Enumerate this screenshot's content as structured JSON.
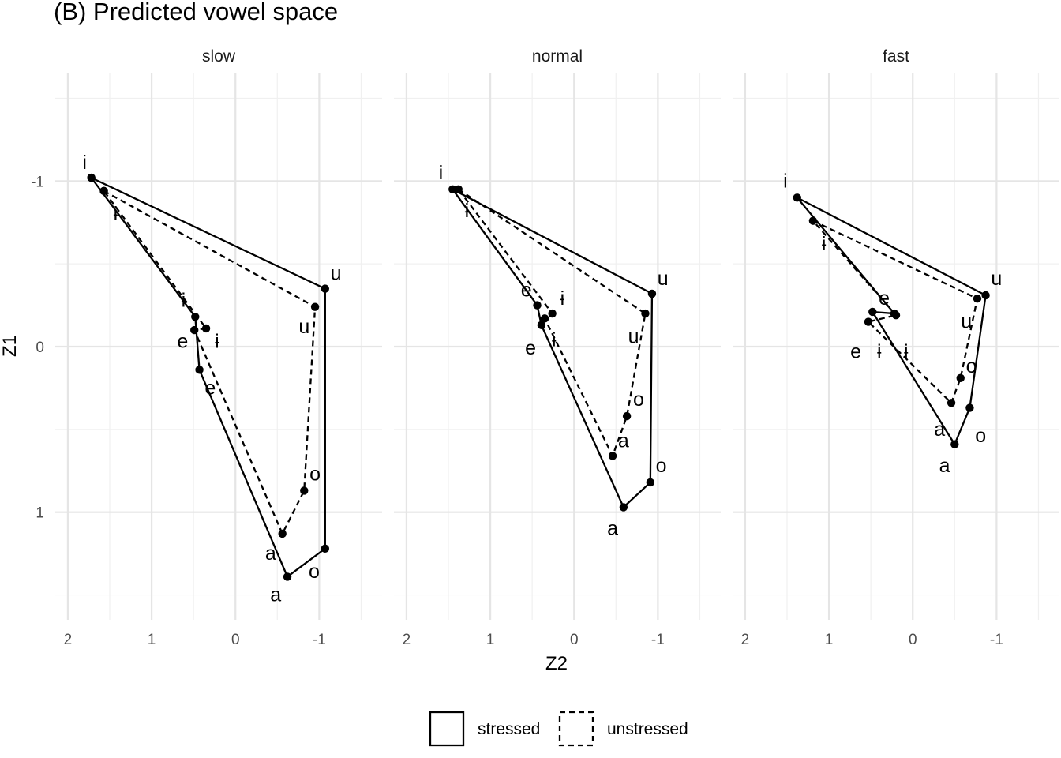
{
  "chart_data": {
    "type": "line",
    "title": "(B) Predicted vowel space",
    "xlabel": "Z2",
    "ylabel": "Z1",
    "x_reversed": true,
    "y_reversed": true,
    "xlim": [
      -1.75,
      2.15
    ],
    "ylim": [
      -1.65,
      1.65
    ],
    "x_ticks": [
      2,
      1,
      0,
      -1
    ],
    "x_tick_labels": [
      "2",
      "1",
      "0",
      "-1"
    ],
    "y_ticks": [
      -1,
      0,
      1
    ],
    "y_tick_labels": [
      "-1",
      "0",
      "1"
    ],
    "legend": {
      "position": "bottom",
      "entries": [
        {
          "label": "stressed",
          "linetype": "solid"
        },
        {
          "label": "unstressed",
          "linetype": "dashed"
        }
      ]
    },
    "panels": [
      {
        "name": "slow",
        "series": [
          {
            "name": "stressed",
            "linetype": "solid",
            "points": [
              {
                "vowel": "i",
                "x": 1.72,
                "y": -1.02
              },
              {
                "vowel": "u",
                "x": -1.07,
                "y": -0.35
              },
              {
                "vowel": "o",
                "x": -1.07,
                "y": 1.22
              },
              {
                "vowel": "a",
                "x": -0.62,
                "y": 1.39
              },
              {
                "vowel": "e",
                "x": 0.43,
                "y": 0.14
              },
              {
                "vowel": "ɨ",
                "x": 0.48,
                "y": -0.18
              }
            ],
            "extra_points": [
              {
                "x": 1.57,
                "y": -0.94
              }
            ]
          },
          {
            "name": "unstressed",
            "linetype": "dashed",
            "points": [
              {
                "vowel": "i",
                "x": 1.57,
                "y": -0.94
              },
              {
                "vowel": "u",
                "x": -0.95,
                "y": -0.24
              },
              {
                "vowel": "o",
                "x": -0.82,
                "y": 0.87
              },
              {
                "vowel": "a",
                "x": -0.56,
                "y": 1.13
              },
              {
                "vowel": "e",
                "x": 0.49,
                "y": -0.1
              },
              {
                "vowel": "ɨ",
                "x": 0.35,
                "y": -0.11
              }
            ],
            "extra_points": [
              {
                "x": 1.72,
                "y": -1.02
              }
            ]
          }
        ]
      },
      {
        "name": "normal",
        "series": [
          {
            "name": "stressed",
            "linetype": "solid",
            "points": [
              {
                "vowel": "i",
                "x": 1.45,
                "y": -0.95
              },
              {
                "vowel": "u",
                "x": -0.93,
                "y": -0.32
              },
              {
                "vowel": "o",
                "x": -0.91,
                "y": 0.82
              },
              {
                "vowel": "a",
                "x": -0.59,
                "y": 0.97
              },
              {
                "vowel": "e",
                "x": 0.39,
                "y": -0.13
              },
              {
                "vowel": "ɨ",
                "x": 0.44,
                "y": -0.25
              }
            ]
          },
          {
            "name": "unstressed",
            "linetype": "dashed",
            "points": [
              {
                "vowel": "i",
                "x": 1.38,
                "y": -0.95
              },
              {
                "vowel": "u",
                "x": -0.85,
                "y": -0.2
              },
              {
                "vowel": "o",
                "x": -0.63,
                "y": 0.42
              },
              {
                "vowel": "a",
                "x": -0.46,
                "y": 0.66
              },
              {
                "vowel": "e",
                "x": 0.35,
                "y": -0.17
              },
              {
                "vowel": "ɨ",
                "x": 0.26,
                "y": -0.2
              }
            ]
          }
        ]
      },
      {
        "name": "fast",
        "series": [
          {
            "name": "stressed",
            "linetype": "solid",
            "points": [
              {
                "vowel": "i",
                "x": 1.38,
                "y": -0.9
              },
              {
                "vowel": "u",
                "x": -0.87,
                "y": -0.31
              },
              {
                "vowel": "o",
                "x": -0.68,
                "y": 0.37
              },
              {
                "vowel": "a",
                "x": -0.5,
                "y": 0.59
              },
              {
                "vowel": "e",
                "x": 0.48,
                "y": -0.21
              },
              {
                "vowel": "ɨ",
                "x": 0.22,
                "y": -0.2
              }
            ]
          },
          {
            "name": "unstressed",
            "linetype": "dashed",
            "points": [
              {
                "vowel": "i",
                "x": 1.19,
                "y": -0.76
              },
              {
                "vowel": "u",
                "x": -0.77,
                "y": -0.29
              },
              {
                "vowel": "o",
                "x": -0.57,
                "y": 0.19
              },
              {
                "vowel": "a",
                "x": -0.46,
                "y": 0.34
              },
              {
                "vowel": "e",
                "x": 0.53,
                "y": -0.15
              },
              {
                "vowel": "ɨ",
                "x": 0.2,
                "y": -0.19
              }
            ]
          }
        ]
      }
    ],
    "vowel_labels": [
      {
        "panel": "slow",
        "text": "i",
        "x": 1.8,
        "y": -1.11
      },
      {
        "panel": "slow",
        "text": "ɨ",
        "x": 1.43,
        "y": -0.8
      },
      {
        "panel": "slow",
        "text": "u",
        "x": -1.2,
        "y": -0.44
      },
      {
        "panel": "slow",
        "text": "ɨ",
        "x": 0.62,
        "y": -0.28
      },
      {
        "panel": "slow",
        "text": "u",
        "x": -0.82,
        "y": -0.12
      },
      {
        "panel": "slow",
        "text": "e",
        "x": 0.63,
        "y": -0.03
      },
      {
        "panel": "slow",
        "text": "ɨ",
        "x": 0.22,
        "y": -0.03
      },
      {
        "panel": "slow",
        "text": "e",
        "x": 0.3,
        "y": 0.25
      },
      {
        "panel": "slow",
        "text": "o",
        "x": -0.95,
        "y": 0.77
      },
      {
        "panel": "slow",
        "text": "a",
        "x": -0.42,
        "y": 1.25
      },
      {
        "panel": "slow",
        "text": "o",
        "x": -0.94,
        "y": 1.36
      },
      {
        "panel": "slow",
        "text": "a",
        "x": -0.48,
        "y": 1.5
      },
      {
        "panel": "normal",
        "text": "i",
        "x": 1.59,
        "y": -1.05
      },
      {
        "panel": "normal",
        "text": "ɨ",
        "x": 1.28,
        "y": -0.82
      },
      {
        "panel": "normal",
        "text": "u",
        "x": -1.06,
        "y": -0.41
      },
      {
        "panel": "normal",
        "text": "e",
        "x": 0.57,
        "y": -0.34
      },
      {
        "panel": "normal",
        "text": "ɨ",
        "x": 0.14,
        "y": -0.29
      },
      {
        "panel": "normal",
        "text": "u",
        "x": -0.71,
        "y": -0.06
      },
      {
        "panel": "normal",
        "text": "ɨ",
        "x": 0.24,
        "y": -0.04
      },
      {
        "panel": "normal",
        "text": "e",
        "x": 0.52,
        "y": 0.01
      },
      {
        "panel": "normal",
        "text": "o",
        "x": -0.77,
        "y": 0.32
      },
      {
        "panel": "normal",
        "text": "a",
        "x": -0.59,
        "y": 0.57
      },
      {
        "panel": "normal",
        "text": "o",
        "x": -1.04,
        "y": 0.72
      },
      {
        "panel": "normal",
        "text": "a",
        "x": -0.46,
        "y": 1.1
      },
      {
        "panel": "fast",
        "text": "i",
        "x": 1.52,
        "y": -1.0
      },
      {
        "panel": "fast",
        "text": "ɨ",
        "x": 1.06,
        "y": -0.62
      },
      {
        "panel": "fast",
        "text": "u",
        "x": -1.0,
        "y": -0.41
      },
      {
        "panel": "fast",
        "text": "e",
        "x": 0.34,
        "y": -0.29
      },
      {
        "panel": "fast",
        "text": "u",
        "x": -0.64,
        "y": -0.15
      },
      {
        "panel": "fast",
        "text": "ɨ",
        "x": 0.4,
        "y": 0.03
      },
      {
        "panel": "fast",
        "text": "ɨ",
        "x": 0.08,
        "y": 0.03
      },
      {
        "panel": "fast",
        "text": "e",
        "x": 0.68,
        "y": 0.03
      },
      {
        "panel": "fast",
        "text": "o",
        "x": -0.7,
        "y": 0.12
      },
      {
        "panel": "fast",
        "text": "a",
        "x": -0.32,
        "y": 0.5
      },
      {
        "panel": "fast",
        "text": "o",
        "x": -0.81,
        "y": 0.54
      },
      {
        "panel": "fast",
        "text": "a",
        "x": -0.38,
        "y": 0.72
      }
    ]
  }
}
